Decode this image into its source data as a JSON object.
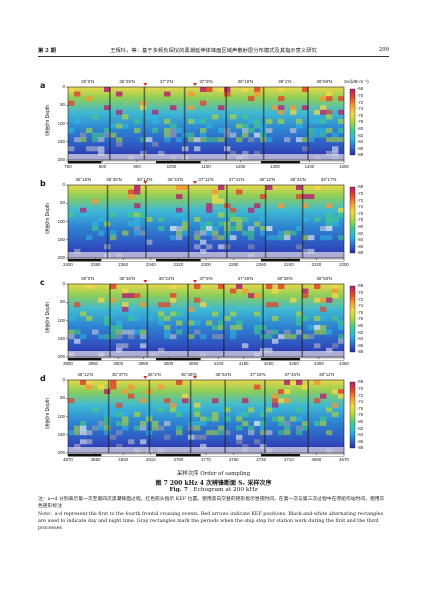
{
  "header": {
    "issue": "第 2 期",
    "title": "王辉玲，等：基于多频负探仪的黑潮延伸体锋面区域声散射层分布模式及其指示意义研究",
    "page": "299"
  },
  "colorbar": {
    "title": "Sv/(dB·m⁻¹)",
    "ticks": [
      "-68",
      "-70",
      "-72",
      "-74",
      "-76",
      "-78",
      "-80",
      "-82",
      "-84",
      "-86",
      "-88"
    ]
  },
  "y_axis": {
    "label": "深度/m  Depth",
    "ticks": [
      "0",
      "50",
      "100",
      "150",
      "200"
    ]
  },
  "x_axis_title": "采样次序  Order of sampling",
  "chart_data": [
    {
      "type": "heatmap",
      "panel": "a",
      "latitudes": [
        "35°0'N",
        "35°25'N",
        "37°2'N",
        "37°6'N",
        "38°19'N",
        "39°1'N",
        "39°59'N"
      ],
      "x": [
        "700",
        "800",
        "900",
        "1000",
        "1100",
        "1200",
        "1300",
        "1400",
        "1500"
      ],
      "ylabel": "深度/m  Depth",
      "ylim": [
        200,
        0
      ]
    },
    {
      "type": "heatmap",
      "panel": "b",
      "latitudes": [
        "35°18'N",
        "35°45'N",
        "36°14'N",
        "36°43'N",
        "37°11'N",
        "37°41'N",
        "38°12'N",
        "38°44'N",
        "39°17'N"
      ],
      "x": [
        "2400",
        "2380",
        "2360",
        "2340",
        "2320",
        "2300",
        "2280",
        "2260",
        "2240",
        "2220",
        "2200"
      ],
      "ylabel": "深度/m  Depth",
      "ylim": [
        200,
        0
      ]
    },
    {
      "type": "heatmap",
      "panel": "c",
      "latitudes": [
        "35°0'N",
        "35°36'N",
        "36°24'N",
        "37°6'N",
        "37°46'N",
        "38°28'N",
        "38°59'N"
      ],
      "x": [
        "3800",
        "3850",
        "3900",
        "3950",
        "4000",
        "4050",
        "4100",
        "4150",
        "4200",
        "4250",
        "4300",
        "4350"
      ],
      "ylabel": "深度/m  Depth",
      "ylim": [
        200,
        0
      ]
    },
    {
      "type": "heatmap",
      "panel": "d",
      "latitudes": [
        "35°12'N",
        "35°37'N",
        "36°2'N",
        "36°28'N",
        "36°54'N",
        "37°19'N",
        "37°45'N",
        "38°11'N"
      ],
      "x": [
        "4870",
        "4850",
        "4830",
        "4810",
        "4790",
        "4770",
        "4750",
        "4730",
        "4710",
        "4690",
        "4670"
      ],
      "ylabel": "深度/m  Depth",
      "ylim": [
        200,
        0
      ]
    }
  ],
  "caption": {
    "cn": "图 7   200 kHz 4 次辨锋断面 Sᵥ 采样次序",
    "en_label": "Fig. 7",
    "en_text": "Echogram at 200 kHz"
  },
  "notes": {
    "cn": "注：a~d 分别表示第一次至第四次黑潮锋面过程。红色箭头指示 KEF 位置。使用黑白交替的矩形指示昼夜时间，在第一次与第三次过程中在停船作站时间，使用灰色矩形标注",
    "en": "Note：a-d represent the first to the fourth frontal crossing events. Red arrows indicate KEF positions. Black-and-white alternating rectangles are used to indicate day and night time. Gray rectangles mark the periods when the ship stop for station work during the first and the third processes"
  }
}
